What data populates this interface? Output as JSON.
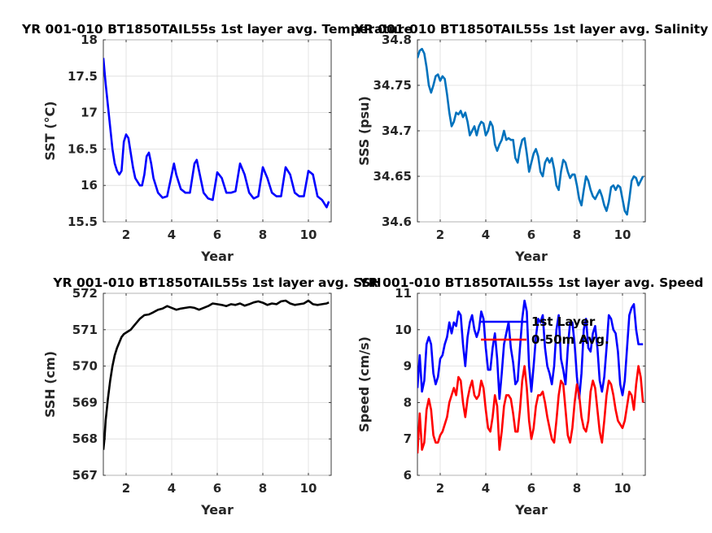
{
  "chart_data": [
    {
      "type": "line",
      "title": "YR 001-010 BT1850TAIL55s 1st layer avg. Temperature",
      "xlabel": "Year",
      "ylabel": "SST (°C)",
      "xlim": [
        1,
        11
      ],
      "ylim": [
        15.5,
        18
      ],
      "xticks": [
        2,
        4,
        6,
        8,
        10
      ],
      "xtick_labels": [
        "2",
        "4",
        "6",
        "8",
        "10"
      ],
      "yticks": [
        15.5,
        16,
        16.5,
        17,
        17.5,
        18
      ],
      "ytick_labels": [
        "15.5",
        "16",
        "16.5",
        "17",
        "17.5",
        "18"
      ],
      "grid": true,
      "series": [
        {
          "color": "#0000ff",
          "x": [
            1.0,
            1.1,
            1.2,
            1.3,
            1.4,
            1.5,
            1.6,
            1.7,
            1.8,
            1.9,
            2.0,
            2.1,
            2.2,
            2.3,
            2.4,
            2.5,
            2.6,
            2.7,
            2.8,
            2.9,
            3.0,
            3.1,
            3.2,
            3.4,
            3.6,
            3.8,
            4.0,
            4.1,
            4.2,
            4.4,
            4.6,
            4.8,
            5.0,
            5.1,
            5.2,
            5.4,
            5.6,
            5.8,
            6.0,
            6.2,
            6.4,
            6.6,
            6.8,
            7.0,
            7.2,
            7.4,
            7.6,
            7.8,
            8.0,
            8.2,
            8.4,
            8.6,
            8.8,
            9.0,
            9.2,
            9.4,
            9.6,
            9.8,
            10.0,
            10.2,
            10.4,
            10.6,
            10.8,
            10.9
          ],
          "values": [
            17.75,
            17.4,
            17.1,
            16.8,
            16.5,
            16.3,
            16.2,
            16.15,
            16.2,
            16.6,
            16.7,
            16.65,
            16.45,
            16.25,
            16.1,
            16.05,
            16.0,
            16.0,
            16.15,
            16.4,
            16.45,
            16.3,
            16.1,
            15.9,
            15.83,
            15.85,
            16.15,
            16.3,
            16.15,
            15.95,
            15.9,
            15.9,
            16.3,
            16.35,
            16.2,
            15.9,
            15.82,
            15.8,
            16.18,
            16.1,
            15.9,
            15.9,
            15.92,
            16.3,
            16.15,
            15.9,
            15.82,
            15.85,
            16.25,
            16.1,
            15.9,
            15.85,
            15.85,
            16.25,
            16.15,
            15.9,
            15.85,
            15.85,
            16.2,
            16.15,
            15.85,
            15.8,
            15.7,
            15.78
          ]
        }
      ]
    },
    {
      "type": "line",
      "title": "YR 001-010 BT1850TAIL55s 1st layer avg. Salinity",
      "xlabel": "Year",
      "ylabel": "SSS (psu)",
      "xlim": [
        1,
        11
      ],
      "ylim": [
        34.6,
        34.8
      ],
      "xticks": [
        2,
        4,
        6,
        8,
        10
      ],
      "xtick_labels": [
        "2",
        "4",
        "6",
        "8",
        "10"
      ],
      "yticks": [
        34.6,
        34.65,
        34.7,
        34.75,
        34.8
      ],
      "ytick_labels": [
        "34.6",
        "34.65",
        "34.7",
        "34.75",
        "34.8"
      ],
      "grid": true,
      "series": [
        {
          "color": "#0072bd",
          "x": [
            1.0,
            1.1,
            1.2,
            1.3,
            1.4,
            1.5,
            1.6,
            1.7,
            1.8,
            1.9,
            2.0,
            2.1,
            2.2,
            2.3,
            2.4,
            2.5,
            2.6,
            2.7,
            2.8,
            2.9,
            3.0,
            3.1,
            3.2,
            3.3,
            3.4,
            3.5,
            3.6,
            3.7,
            3.8,
            3.9,
            4.0,
            4.1,
            4.2,
            4.3,
            4.4,
            4.5,
            4.6,
            4.7,
            4.8,
            4.9,
            5.0,
            5.1,
            5.2,
            5.3,
            5.4,
            5.5,
            5.6,
            5.7,
            5.8,
            5.9,
            6.0,
            6.1,
            6.2,
            6.3,
            6.4,
            6.5,
            6.6,
            6.7,
            6.8,
            6.9,
            7.0,
            7.1,
            7.2,
            7.3,
            7.4,
            7.5,
            7.6,
            7.7,
            7.8,
            7.9,
            8.0,
            8.1,
            8.2,
            8.3,
            8.4,
            8.5,
            8.6,
            8.7,
            8.8,
            8.9,
            9.0,
            9.1,
            9.2,
            9.3,
            9.4,
            9.5,
            9.6,
            9.7,
            9.8,
            9.9,
            10.0,
            10.1,
            10.2,
            10.3,
            10.4,
            10.5,
            10.6,
            10.7,
            10.8,
            10.9
          ],
          "values": [
            34.78,
            34.788,
            34.79,
            34.785,
            34.77,
            34.75,
            34.742,
            34.75,
            34.76,
            34.762,
            34.755,
            34.76,
            34.757,
            34.74,
            34.72,
            34.705,
            34.71,
            34.72,
            34.718,
            34.722,
            34.715,
            34.72,
            34.71,
            34.695,
            34.7,
            34.705,
            34.695,
            34.705,
            34.71,
            34.708,
            34.695,
            34.7,
            34.71,
            34.705,
            34.685,
            34.678,
            34.685,
            34.69,
            34.7,
            34.69,
            34.692,
            34.69,
            34.69,
            34.67,
            34.665,
            34.68,
            34.69,
            34.692,
            34.675,
            34.655,
            34.665,
            34.675,
            34.68,
            34.672,
            34.655,
            34.65,
            34.665,
            34.67,
            34.665,
            34.67,
            34.658,
            34.64,
            34.635,
            34.655,
            34.668,
            34.665,
            34.655,
            34.648,
            34.652,
            34.652,
            34.64,
            34.625,
            34.618,
            34.635,
            34.65,
            34.645,
            34.635,
            34.628,
            34.625,
            34.63,
            34.635,
            34.628,
            34.618,
            34.612,
            34.622,
            34.638,
            34.64,
            34.635,
            34.64,
            34.638,
            34.625,
            34.612,
            34.608,
            34.625,
            34.645,
            34.65,
            34.648,
            34.64,
            34.645,
            34.65
          ]
        }
      ]
    },
    {
      "type": "line",
      "title": "YR 001-010 BT1850TAIL55s 1st layer avg. SSH",
      "xlabel": "Year",
      "ylabel": "SSH (cm)",
      "xlim": [
        1,
        11
      ],
      "ylim": [
        567,
        572
      ],
      "xticks": [
        2,
        4,
        6,
        8,
        10
      ],
      "xtick_labels": [
        "2",
        "4",
        "6",
        "8",
        "10"
      ],
      "yticks": [
        567,
        568,
        569,
        570,
        571,
        572
      ],
      "ytick_labels": [
        "567",
        "568",
        "569",
        "570",
        "571",
        "572"
      ],
      "grid": true,
      "series": [
        {
          "color": "#000000",
          "x": [
            1.0,
            1.05,
            1.1,
            1.2,
            1.3,
            1.4,
            1.5,
            1.6,
            1.7,
            1.8,
            1.9,
            2.0,
            2.2,
            2.4,
            2.6,
            2.8,
            3.0,
            3.2,
            3.4,
            3.6,
            3.8,
            4.0,
            4.2,
            4.4,
            4.6,
            4.8,
            5.0,
            5.2,
            5.4,
            5.6,
            5.8,
            6.0,
            6.2,
            6.4,
            6.6,
            6.8,
            7.0,
            7.2,
            7.4,
            7.6,
            7.8,
            8.0,
            8.2,
            8.4,
            8.6,
            8.8,
            9.0,
            9.2,
            9.4,
            9.6,
            9.8,
            10.0,
            10.2,
            10.4,
            10.6,
            10.8,
            10.9
          ],
          "values": [
            567.7,
            568.0,
            568.5,
            569.1,
            569.6,
            570.0,
            570.3,
            570.5,
            570.65,
            570.8,
            570.88,
            570.92,
            571.0,
            571.15,
            571.3,
            571.4,
            571.42,
            571.48,
            571.55,
            571.58,
            571.65,
            571.6,
            571.55,
            571.58,
            571.6,
            571.62,
            571.6,
            571.55,
            571.6,
            571.65,
            571.72,
            571.7,
            571.68,
            571.65,
            571.7,
            571.68,
            571.72,
            571.66,
            571.7,
            571.75,
            571.78,
            571.74,
            571.68,
            571.72,
            571.7,
            571.78,
            571.8,
            571.72,
            571.68,
            571.7,
            571.72,
            571.8,
            571.7,
            571.68,
            571.7,
            571.72,
            571.75
          ]
        }
      ]
    },
    {
      "type": "line",
      "title": "YR 001-010 BT1850TAIL55s 1st layer avg. Speed",
      "xlabel": "Year",
      "ylabel": "Speed (cm/s)",
      "xlim": [
        1,
        11
      ],
      "ylim": [
        6,
        11
      ],
      "xticks": [
        2,
        4,
        6,
        8,
        10
      ],
      "xtick_labels": [
        "2",
        "4",
        "6",
        "8",
        "10"
      ],
      "yticks": [
        6,
        7,
        8,
        9,
        10,
        11
      ],
      "ytick_labels": [
        "6",
        "7",
        "8",
        "9",
        "10",
        "11"
      ],
      "grid": true,
      "legend": {
        "location": "top-left-center",
        "entries": [
          "1st Layer",
          "0-50m Avg."
        ]
      },
      "series": [
        {
          "name": "1st Layer",
          "color": "#0000ff",
          "x": [
            1.0,
            1.1,
            1.2,
            1.3,
            1.4,
            1.5,
            1.6,
            1.7,
            1.8,
            1.9,
            2.0,
            2.1,
            2.2,
            2.3,
            2.4,
            2.5,
            2.6,
            2.7,
            2.8,
            2.9,
            3.0,
            3.1,
            3.2,
            3.3,
            3.4,
            3.5,
            3.6,
            3.7,
            3.8,
            3.9,
            4.0,
            4.1,
            4.2,
            4.3,
            4.4,
            4.5,
            4.6,
            4.7,
            4.8,
            4.9,
            5.0,
            5.1,
            5.2,
            5.3,
            5.4,
            5.5,
            5.6,
            5.7,
            5.8,
            5.9,
            6.0,
            6.1,
            6.2,
            6.3,
            6.4,
            6.5,
            6.6,
            6.7,
            6.8,
            6.9,
            7.0,
            7.1,
            7.2,
            7.3,
            7.4,
            7.5,
            7.6,
            7.7,
            7.8,
            7.9,
            8.0,
            8.1,
            8.2,
            8.3,
            8.4,
            8.5,
            8.6,
            8.7,
            8.8,
            8.9,
            9.0,
            9.1,
            9.2,
            9.3,
            9.4,
            9.5,
            9.6,
            9.7,
            9.8,
            9.9,
            10.0,
            10.1,
            10.2,
            10.3,
            10.4,
            10.5,
            10.6,
            10.7,
            10.8,
            10.9
          ],
          "values": [
            8.4,
            9.3,
            8.3,
            8.6,
            9.6,
            9.8,
            9.6,
            8.8,
            8.5,
            8.7,
            9.2,
            9.3,
            9.6,
            9.8,
            10.2,
            9.9,
            10.2,
            10.1,
            10.5,
            10.4,
            9.6,
            9.0,
            9.8,
            10.2,
            10.4,
            10.0,
            9.8,
            10.0,
            10.5,
            10.3,
            9.5,
            8.9,
            8.9,
            9.5,
            9.9,
            9.2,
            8.1,
            8.8,
            9.6,
            9.9,
            10.2,
            9.5,
            9.1,
            8.5,
            8.6,
            9.5,
            10.3,
            10.8,
            10.5,
            9.0,
            8.3,
            9.0,
            9.8,
            10.3,
            10.2,
            10.4,
            9.5,
            9.0,
            8.8,
            8.5,
            9.0,
            10.0,
            10.4,
            9.2,
            8.9,
            8.5,
            9.5,
            10.2,
            10.2,
            9.6,
            8.7,
            8.1,
            8.8,
            10.0,
            10.3,
            9.5,
            9.4,
            9.9,
            10.1,
            9.5,
            8.6,
            8.3,
            8.7,
            9.5,
            10.4,
            10.3,
            10.0,
            9.9,
            9.4,
            8.5,
            8.2,
            8.6,
            9.5,
            10.4,
            10.6,
            10.7,
            10.0,
            9.6,
            9.6,
            9.6
          ]
        },
        {
          "name": "0-50m Avg.",
          "color": "#ff0000",
          "x": [
            1.0,
            1.1,
            1.2,
            1.3,
            1.4,
            1.5,
            1.6,
            1.7,
            1.8,
            1.9,
            2.0,
            2.1,
            2.2,
            2.3,
            2.4,
            2.5,
            2.6,
            2.7,
            2.8,
            2.9,
            3.0,
            3.1,
            3.2,
            3.3,
            3.4,
            3.5,
            3.6,
            3.7,
            3.8,
            3.9,
            4.0,
            4.1,
            4.2,
            4.3,
            4.4,
            4.5,
            4.6,
            4.7,
            4.8,
            4.9,
            5.0,
            5.1,
            5.2,
            5.3,
            5.4,
            5.5,
            5.6,
            5.7,
            5.8,
            5.9,
            6.0,
            6.1,
            6.2,
            6.3,
            6.4,
            6.5,
            6.6,
            6.7,
            6.8,
            6.9,
            7.0,
            7.1,
            7.2,
            7.3,
            7.4,
            7.5,
            7.6,
            7.7,
            7.8,
            7.9,
            8.0,
            8.1,
            8.2,
            8.3,
            8.4,
            8.5,
            8.6,
            8.7,
            8.8,
            8.9,
            9.0,
            9.1,
            9.2,
            9.3,
            9.4,
            9.5,
            9.6,
            9.7,
            9.8,
            9.9,
            10.0,
            10.1,
            10.2,
            10.3,
            10.4,
            10.5,
            10.6,
            10.7,
            10.8,
            10.9
          ],
          "values": [
            6.6,
            7.7,
            6.7,
            6.9,
            7.8,
            8.1,
            7.8,
            7.1,
            6.9,
            6.9,
            7.1,
            7.2,
            7.4,
            7.6,
            8.0,
            8.2,
            8.4,
            8.2,
            8.7,
            8.6,
            8.0,
            7.6,
            8.1,
            8.4,
            8.6,
            8.2,
            8.1,
            8.2,
            8.6,
            8.4,
            7.8,
            7.3,
            7.2,
            7.6,
            8.2,
            7.9,
            6.7,
            7.2,
            7.9,
            8.2,
            8.2,
            8.1,
            7.7,
            7.2,
            7.2,
            7.8,
            8.6,
            9.0,
            8.4,
            7.5,
            7.0,
            7.3,
            7.9,
            8.2,
            8.2,
            8.3,
            8.0,
            7.6,
            7.3,
            7.0,
            6.9,
            7.5,
            8.2,
            8.6,
            8.5,
            7.8,
            7.1,
            6.9,
            7.3,
            8.0,
            8.5,
            8.2,
            7.6,
            7.3,
            7.2,
            7.5,
            8.3,
            8.6,
            8.4,
            7.8,
            7.2,
            6.9,
            7.5,
            8.2,
            8.6,
            8.5,
            8.2,
            7.8,
            7.5,
            7.4,
            7.3,
            7.5,
            7.9,
            8.3,
            8.2,
            7.8,
            8.5,
            9.0,
            8.7,
            8.0
          ]
        }
      ]
    }
  ]
}
